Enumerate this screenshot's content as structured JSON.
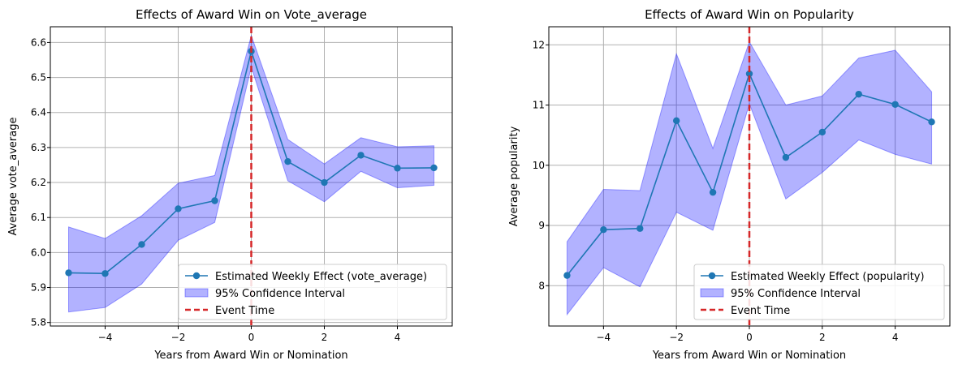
{
  "chart_data": [
    {
      "type": "line",
      "title": "Effects of Award Win on Vote_average",
      "xlabel": "Years from Award Win or Nomination",
      "ylabel": "Average vote_average",
      "xlim": [
        -5.5,
        5.5
      ],
      "ylim": [
        5.79,
        6.645
      ],
      "xticks": [
        -4,
        -2,
        0,
        2,
        4
      ],
      "xtick_labels": [
        "−4",
        "−2",
        "0",
        "2",
        "4"
      ],
      "yticks": [
        5.8,
        5.9,
        6.0,
        6.1,
        6.2,
        6.3,
        6.4,
        6.5,
        6.6
      ],
      "ytick_labels": [
        "5.8",
        "5.9",
        "6.0",
        "6.1",
        "6.2",
        "6.3",
        "6.4",
        "6.5",
        "6.6"
      ],
      "grid": true,
      "legend_position": "lower-right",
      "event_time": 0,
      "series": [
        {
          "name": "Estimated Weekly Effect (vote_average)",
          "x": [
            -5,
            -4,
            -3,
            -2,
            -1,
            0,
            1,
            2,
            3,
            4,
            5
          ],
          "values": [
            5.942,
            5.94,
            6.023,
            6.125,
            6.148,
            6.575,
            6.26,
            6.2,
            6.278,
            6.241,
            6.242
          ]
        }
      ],
      "ci_lower": [
        5.83,
        5.843,
        5.91,
        6.035,
        6.086,
        6.53,
        6.205,
        6.145,
        6.232,
        6.185,
        6.192
      ],
      "ci_upper": [
        6.073,
        6.04,
        6.105,
        6.198,
        6.22,
        6.62,
        6.323,
        6.253,
        6.328,
        6.302,
        6.305
      ],
      "ci_label": "95% Confidence Interval",
      "event_label": "Event Time",
      "colors": {
        "line": "#1f77b4",
        "ci": "#0000ff",
        "event": "#d62728"
      }
    },
    {
      "type": "line",
      "title": "Effects of Award Win on Popularity",
      "xlabel": "Years from Award Win or Nomination",
      "ylabel": "Average popularity",
      "xlim": [
        -5.5,
        5.5
      ],
      "ylim": [
        7.33,
        12.3
      ],
      "xticks": [
        -4,
        -2,
        0,
        2,
        4
      ],
      "xtick_labels": [
        "−4",
        "−2",
        "0",
        "2",
        "4"
      ],
      "yticks": [
        8,
        9,
        10,
        11,
        12
      ],
      "ytick_labels": [
        "8",
        "9",
        "10",
        "11",
        "12"
      ],
      "grid": true,
      "legend_position": "lower-right",
      "event_time": 0,
      "series": [
        {
          "name": "Estimated Weekly Effect (popularity)",
          "x": [
            -5,
            -4,
            -3,
            -2,
            -1,
            0,
            1,
            2,
            3,
            4,
            5
          ],
          "values": [
            8.17,
            8.93,
            8.95,
            10.74,
            9.55,
            11.52,
            10.13,
            10.55,
            11.18,
            11.01,
            10.72
          ]
        }
      ],
      "ci_lower": [
        7.52,
        8.3,
        7.98,
        9.22,
        8.92,
        11.02,
        9.44,
        9.88,
        10.42,
        10.18,
        10.02
      ],
      "ci_upper": [
        8.73,
        9.6,
        9.58,
        11.85,
        10.28,
        12.05,
        11.0,
        11.15,
        11.78,
        11.91,
        11.22
      ],
      "ci_label": "95% Confidence Interval",
      "event_label": "Event Time",
      "colors": {
        "line": "#1f77b4",
        "ci": "#0000ff",
        "event": "#d62728"
      }
    }
  ]
}
